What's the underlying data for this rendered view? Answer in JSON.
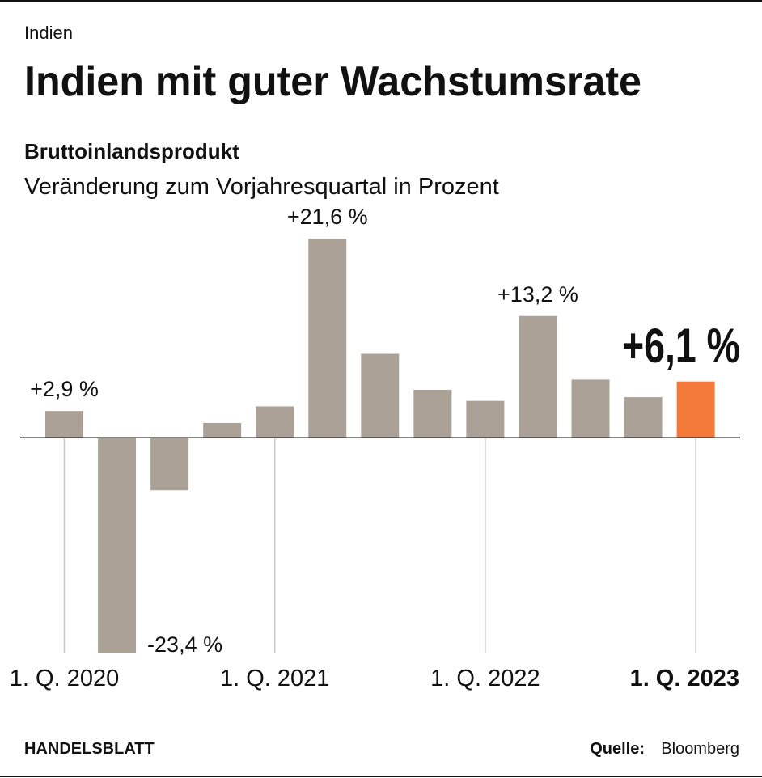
{
  "kicker": "Indien",
  "title": "Indien mit guter Wachstumsrate",
  "chart_data": {
    "type": "bar",
    "subtitle": "Bruttoinlandsprodukt",
    "description": "Veränderung zum Vorjahresquartal in Prozent",
    "categories": [
      "1. Q. 2020",
      null,
      null,
      null,
      "1. Q. 2021",
      null,
      null,
      null,
      "1. Q. 2022",
      null,
      null,
      null,
      "1. Q. 2023"
    ],
    "values": [
      2.9,
      -23.4,
      -5.7,
      1.6,
      3.4,
      21.6,
      9.1,
      5.2,
      4.0,
      13.2,
      6.3,
      4.4,
      6.1
    ],
    "value_labels": [
      "+2,9 %",
      "-23,4 %",
      null,
      null,
      null,
      "+21,6 %",
      null,
      null,
      null,
      "+13,2 %",
      null,
      null,
      "+6,1 %"
    ],
    "colors": [
      "#aca196",
      "#aca196",
      "#aca196",
      "#aca196",
      "#aca196",
      "#aca196",
      "#aca196",
      "#aca196",
      "#aca196",
      "#aca196",
      "#aca196",
      "#aca196",
      "#f47a3a"
    ]
  },
  "footer": {
    "brand": "HANDELSBLATT",
    "source_label": "Quelle:",
    "source": "Bloomberg"
  }
}
